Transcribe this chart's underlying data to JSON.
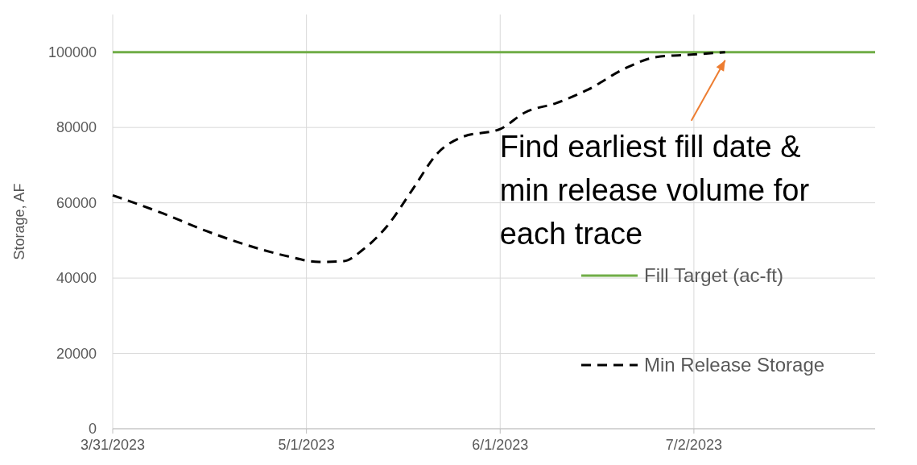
{
  "chart_data": {
    "type": "line",
    "ylabel": "Storage, AF",
    "xlim": [
      "2023-03-31",
      "2023-07-31"
    ],
    "xticks": [
      {
        "value": "2023-03-31",
        "label": "3/31/2023"
      },
      {
        "value": "2023-05-01",
        "label": "5/1/2023"
      },
      {
        "value": "2023-06-01",
        "label": "6/1/2023"
      },
      {
        "value": "2023-07-02",
        "label": "7/2/2023"
      }
    ],
    "ylim": [
      0,
      110000
    ],
    "yticks": [
      0,
      20000,
      40000,
      60000,
      80000,
      100000
    ],
    "grid": true,
    "legend": "bottom right",
    "series": [
      {
        "name": "Fill Target (ac-ft)",
        "color": "#70ad47",
        "line_style": "solid",
        "x": [
          "2023-03-31",
          "2023-07-31"
        ],
        "values": [
          100000,
          100000
        ]
      },
      {
        "name": "Min Release Storage",
        "color": "#000000",
        "line_style": "dashed",
        "x": [
          "2023-03-31",
          "2023-04-08",
          "2023-04-15",
          "2023-04-23",
          "2023-04-28",
          "2023-05-03",
          "2023-05-07",
          "2023-05-10",
          "2023-05-14",
          "2023-05-18",
          "2023-05-22",
          "2023-05-26",
          "2023-06-01",
          "2023-06-05",
          "2023-06-10",
          "2023-06-15",
          "2023-06-21",
          "2023-06-26",
          "2023-07-02",
          "2023-07-07"
        ],
        "values": [
          62000,
          57200,
          52500,
          48000,
          45800,
          44300,
          44500,
          47500,
          54000,
          63600,
          73200,
          77500,
          79600,
          84000,
          86500,
          90000,
          95700,
          98700,
          99400,
          100000
        ]
      }
    ],
    "annotations": [
      {
        "text": "Find earliest fill date & min release volume for each trace",
        "x": "2023-07-07",
        "y": 100000
      }
    ]
  }
}
